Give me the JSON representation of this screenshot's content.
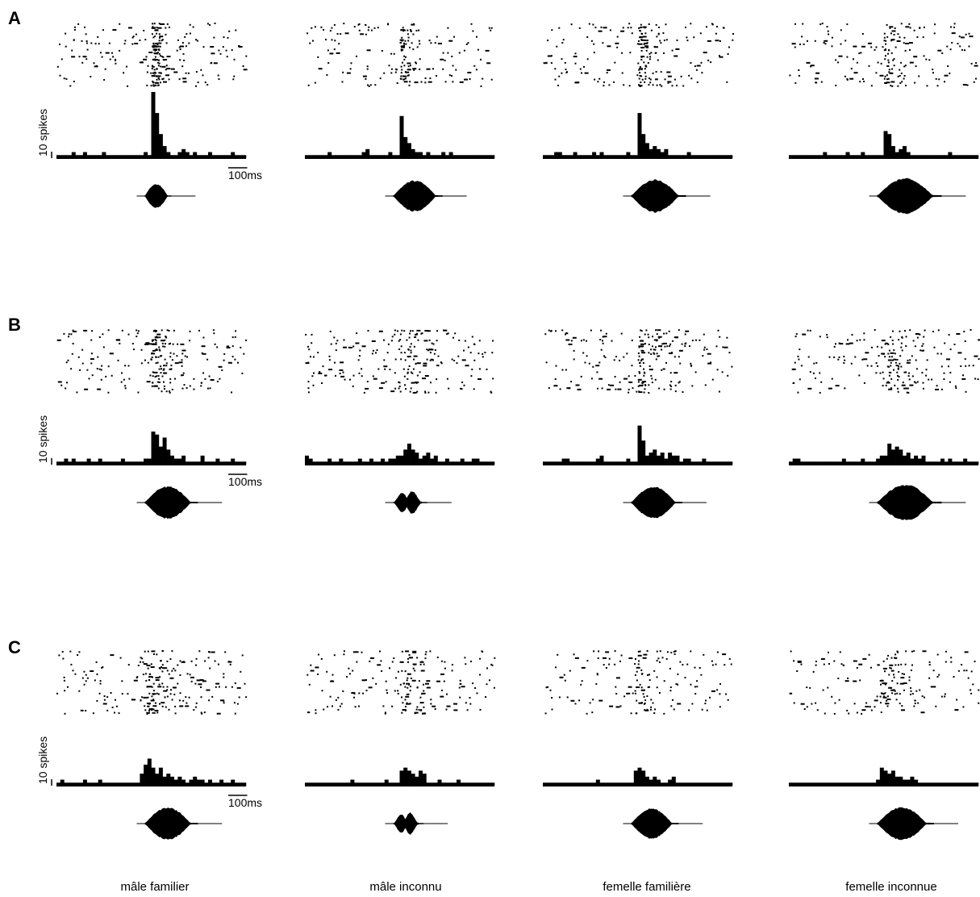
{
  "figure": {
    "colors": {
      "ink": "#000000",
      "background": "#ffffff"
    },
    "y_scale_label": "10 spikes",
    "time_scale_label": "100ms",
    "conditions": [
      "mâle familier",
      "mâle inconnu",
      "femelle familière",
      "femelle inconnue"
    ],
    "panels": [
      {
        "letter": "A"
      },
      {
        "letter": "B"
      },
      {
        "letter": "C"
      }
    ]
  },
  "chart_data": [
    {
      "type": "bar",
      "panel": "A",
      "description_type": "raster + PSTH + stimulus waveform per condition",
      "time_axis_ms": {
        "bin_width": 20,
        "range": [
          -500,
          500
        ],
        "stimulus_onset": 0
      },
      "series": [
        {
          "name": "mâle familier",
          "values": [
            1,
            1,
            1,
            1,
            2,
            1,
            1,
            2,
            1,
            1,
            1,
            1,
            2,
            1,
            1,
            1,
            1,
            1,
            1,
            1,
            1,
            1,
            1,
            2,
            1,
            22,
            15,
            8,
            4,
            2,
            1,
            1,
            2,
            3,
            2,
            1,
            2,
            1,
            1,
            1,
            2,
            1,
            1,
            1,
            1,
            1,
            2,
            1,
            1,
            1
          ],
          "stim_dur_ms": 140
        },
        {
          "name": "mâle inconnu",
          "values": [
            1,
            1,
            1,
            1,
            1,
            1,
            2,
            1,
            1,
            1,
            1,
            1,
            1,
            1,
            1,
            2,
            3,
            1,
            1,
            1,
            1,
            1,
            2,
            1,
            1,
            14,
            7,
            5,
            3,
            2,
            2,
            1,
            2,
            1,
            1,
            1,
            2,
            1,
            2,
            1,
            1,
            1,
            1,
            1,
            1,
            1,
            1,
            1,
            1,
            1
          ],
          "stim_dur_ms": 260
        },
        {
          "name": "femelle familière",
          "values": [
            1,
            1,
            1,
            2,
            2,
            1,
            1,
            1,
            2,
            1,
            1,
            1,
            1,
            2,
            1,
            2,
            1,
            1,
            1,
            1,
            1,
            1,
            2,
            1,
            1,
            15,
            8,
            5,
            3,
            4,
            3,
            2,
            3,
            1,
            1,
            1,
            1,
            1,
            2,
            1,
            1,
            1,
            1,
            1,
            1,
            1,
            1,
            1,
            1,
            1
          ],
          "stim_dur_ms": 290
        },
        {
          "name": "femelle inconnue",
          "values": [
            1,
            1,
            1,
            1,
            1,
            1,
            1,
            1,
            1,
            2,
            1,
            1,
            1,
            1,
            1,
            2,
            1,
            1,
            1,
            2,
            1,
            1,
            1,
            1,
            1,
            9,
            8,
            4,
            2,
            3,
            4,
            2,
            1,
            1,
            1,
            1,
            1,
            1,
            1,
            1,
            1,
            1,
            2,
            1,
            1,
            1,
            1,
            1,
            1,
            1
          ],
          "stim_dur_ms": 340
        }
      ]
    },
    {
      "type": "bar",
      "panel": "B",
      "description_type": "raster + PSTH + stimulus waveform per condition",
      "time_axis_ms": {
        "bin_width": 20,
        "range": [
          -500,
          500
        ],
        "stimulus_onset": 0
      },
      "series": [
        {
          "name": "mâle familier",
          "values": [
            1,
            1,
            2,
            1,
            2,
            1,
            1,
            1,
            2,
            1,
            1,
            2,
            1,
            1,
            1,
            1,
            1,
            2,
            1,
            1,
            1,
            1,
            1,
            2,
            2,
            11,
            10,
            6,
            9,
            5,
            3,
            2,
            2,
            3,
            1,
            1,
            1,
            1,
            3,
            1,
            1,
            1,
            2,
            1,
            1,
            1,
            2,
            1,
            1,
            1
          ],
          "stim_dur_ms": 280
        },
        {
          "name": "mâle inconnu",
          "values": [
            3,
            2,
            1,
            1,
            1,
            1,
            2,
            1,
            1,
            2,
            1,
            1,
            1,
            1,
            2,
            1,
            1,
            2,
            1,
            1,
            2,
            1,
            2,
            2,
            3,
            3,
            5,
            7,
            5,
            4,
            2,
            3,
            4,
            2,
            3,
            1,
            1,
            2,
            1,
            1,
            1,
            2,
            1,
            1,
            2,
            2,
            1,
            1,
            1,
            1
          ],
          "stim_dur_ms": 180
        },
        {
          "name": "femelle familière",
          "values": [
            1,
            1,
            1,
            1,
            1,
            2,
            2,
            1,
            1,
            1,
            1,
            1,
            1,
            1,
            2,
            3,
            1,
            1,
            1,
            1,
            1,
            1,
            2,
            1,
            1,
            13,
            8,
            3,
            4,
            5,
            3,
            4,
            2,
            4,
            3,
            3,
            1,
            2,
            2,
            1,
            1,
            1,
            2,
            1,
            1,
            1,
            1,
            1,
            1,
            1
          ],
          "stim_dur_ms": 270
        },
        {
          "name": "femelle inconnue",
          "values": [
            1,
            2,
            2,
            1,
            1,
            1,
            1,
            1,
            1,
            1,
            1,
            1,
            1,
            1,
            2,
            1,
            1,
            1,
            1,
            2,
            1,
            1,
            1,
            2,
            3,
            3,
            7,
            5,
            6,
            5,
            3,
            4,
            2,
            3,
            2,
            3,
            1,
            1,
            1,
            1,
            2,
            1,
            2,
            1,
            1,
            1,
            2,
            1,
            1,
            1
          ],
          "stim_dur_ms": 340
        }
      ]
    },
    {
      "type": "bar",
      "panel": "C",
      "description_type": "raster + PSTH + stimulus waveform per condition",
      "time_axis_ms": {
        "bin_width": 20,
        "range": [
          -500,
          500
        ],
        "stimulus_onset": 0
      },
      "series": [
        {
          "name": "mâle familier",
          "values": [
            1,
            2,
            1,
            1,
            1,
            1,
            1,
            2,
            1,
            1,
            1,
            2,
            1,
            1,
            1,
            1,
            1,
            1,
            1,
            1,
            1,
            1,
            4,
            7,
            9,
            6,
            4,
            6,
            3,
            4,
            3,
            2,
            3,
            2,
            1,
            2,
            3,
            2,
            2,
            1,
            2,
            1,
            1,
            2,
            1,
            1,
            2,
            1,
            1,
            1
          ],
          "stim_dur_ms": 280
        },
        {
          "name": "mâle inconnu",
          "values": [
            1,
            1,
            1,
            1,
            1,
            1,
            1,
            1,
            1,
            1,
            1,
            1,
            2,
            1,
            1,
            1,
            1,
            1,
            1,
            1,
            1,
            2,
            1,
            1,
            1,
            5,
            6,
            5,
            4,
            3,
            5,
            4,
            1,
            1,
            1,
            2,
            1,
            1,
            1,
            1,
            2,
            1,
            1,
            1,
            1,
            1,
            1,
            1,
            1,
            1
          ],
          "stim_dur_ms": 160
        },
        {
          "name": "femelle familière",
          "values": [
            1,
            1,
            1,
            1,
            1,
            1,
            1,
            1,
            1,
            1,
            1,
            1,
            1,
            1,
            2,
            1,
            1,
            1,
            1,
            1,
            1,
            1,
            1,
            1,
            5,
            6,
            5,
            3,
            2,
            3,
            2,
            1,
            1,
            2,
            3,
            1,
            1,
            1,
            1,
            1,
            1,
            1,
            1,
            1,
            1,
            1,
            1,
            1,
            1,
            1
          ],
          "stim_dur_ms": 250
        },
        {
          "name": "femelle inconnue",
          "values": [
            1,
            1,
            1,
            1,
            1,
            1,
            1,
            1,
            1,
            1,
            1,
            1,
            1,
            1,
            1,
            1,
            1,
            1,
            1,
            1,
            1,
            1,
            1,
            2,
            6,
            5,
            4,
            5,
            3,
            3,
            2,
            2,
            3,
            2,
            1,
            1,
            1,
            1,
            1,
            1,
            1,
            1,
            1,
            1,
            1,
            1,
            1,
            1,
            1,
            1
          ],
          "stim_dur_ms": 300
        }
      ]
    }
  ]
}
